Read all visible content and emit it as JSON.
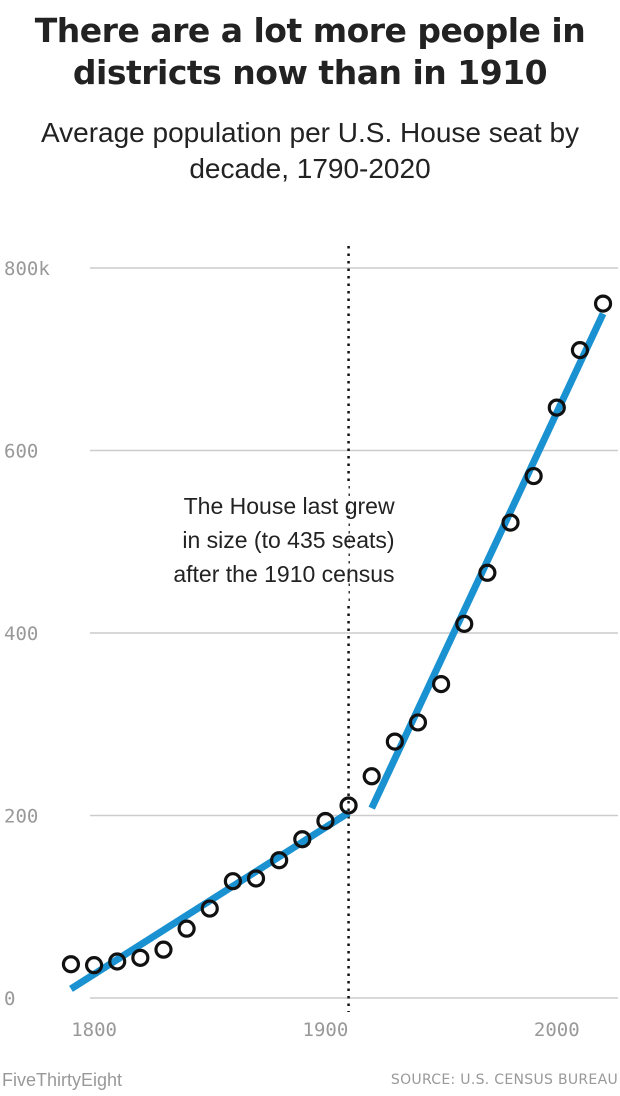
{
  "header": {
    "title": "There are a lot more people in districts now than in 1910",
    "subtitle": "Average population per U.S. House seat by decade, 1790-2020"
  },
  "footer": {
    "brand": "FiveThirtyEight",
    "source": "SOURCE: U.S. CENSUS BUREAU"
  },
  "colors": {
    "points": "#111111",
    "trend": "#1a91d1",
    "grid": "#cccccc",
    "ticks": "#999999"
  },
  "chart_data": {
    "type": "scatter",
    "title": "There are a lot more people in districts now than in 1910",
    "subtitle": "Average population per U.S. House seat by decade, 1790-2020",
    "xlabel": "",
    "ylabel": "",
    "xlim": [
      1787,
      2023
    ],
    "ylim": [
      0,
      800
    ],
    "grid": true,
    "x_ticks": [
      {
        "value": 1800,
        "label": "1800"
      },
      {
        "value": 1900,
        "label": "1900"
      },
      {
        "value": 2000,
        "label": "2000"
      }
    ],
    "y_ticks": [
      {
        "value": 0,
        "label": "0"
      },
      {
        "value": 200,
        "label": "200"
      },
      {
        "value": 400,
        "label": "400"
      },
      {
        "value": 600,
        "label": "600"
      },
      {
        "value": 800,
        "label": "800k"
      }
    ],
    "series": [
      {
        "x": [
          1790,
          1800,
          1810,
          1820,
          1830,
          1840,
          1850,
          1860,
          1870,
          1880,
          1890,
          1900,
          1910,
          1920,
          1930,
          1940,
          1950,
          1960,
          1970,
          1980,
          1990,
          2000,
          2010,
          2020
        ],
        "values": [
          37,
          36,
          40,
          44,
          53,
          76,
          98,
          128,
          131,
          151,
          174,
          194,
          211,
          243,
          281,
          302,
          344,
          410,
          466,
          521,
          572,
          647,
          710,
          761
        ]
      }
    ],
    "trend_lines": [
      {
        "x": [
          1790,
          1910
        ],
        "y": [
          10,
          203
        ]
      },
      {
        "x": [
          1920,
          2020
        ],
        "y": [
          208,
          750
        ]
      }
    ],
    "annotations": [
      {
        "x": 1910,
        "lines": [
          "The House last grew",
          "in size (to 435 seats)",
          "after the 1910 census"
        ]
      }
    ]
  }
}
